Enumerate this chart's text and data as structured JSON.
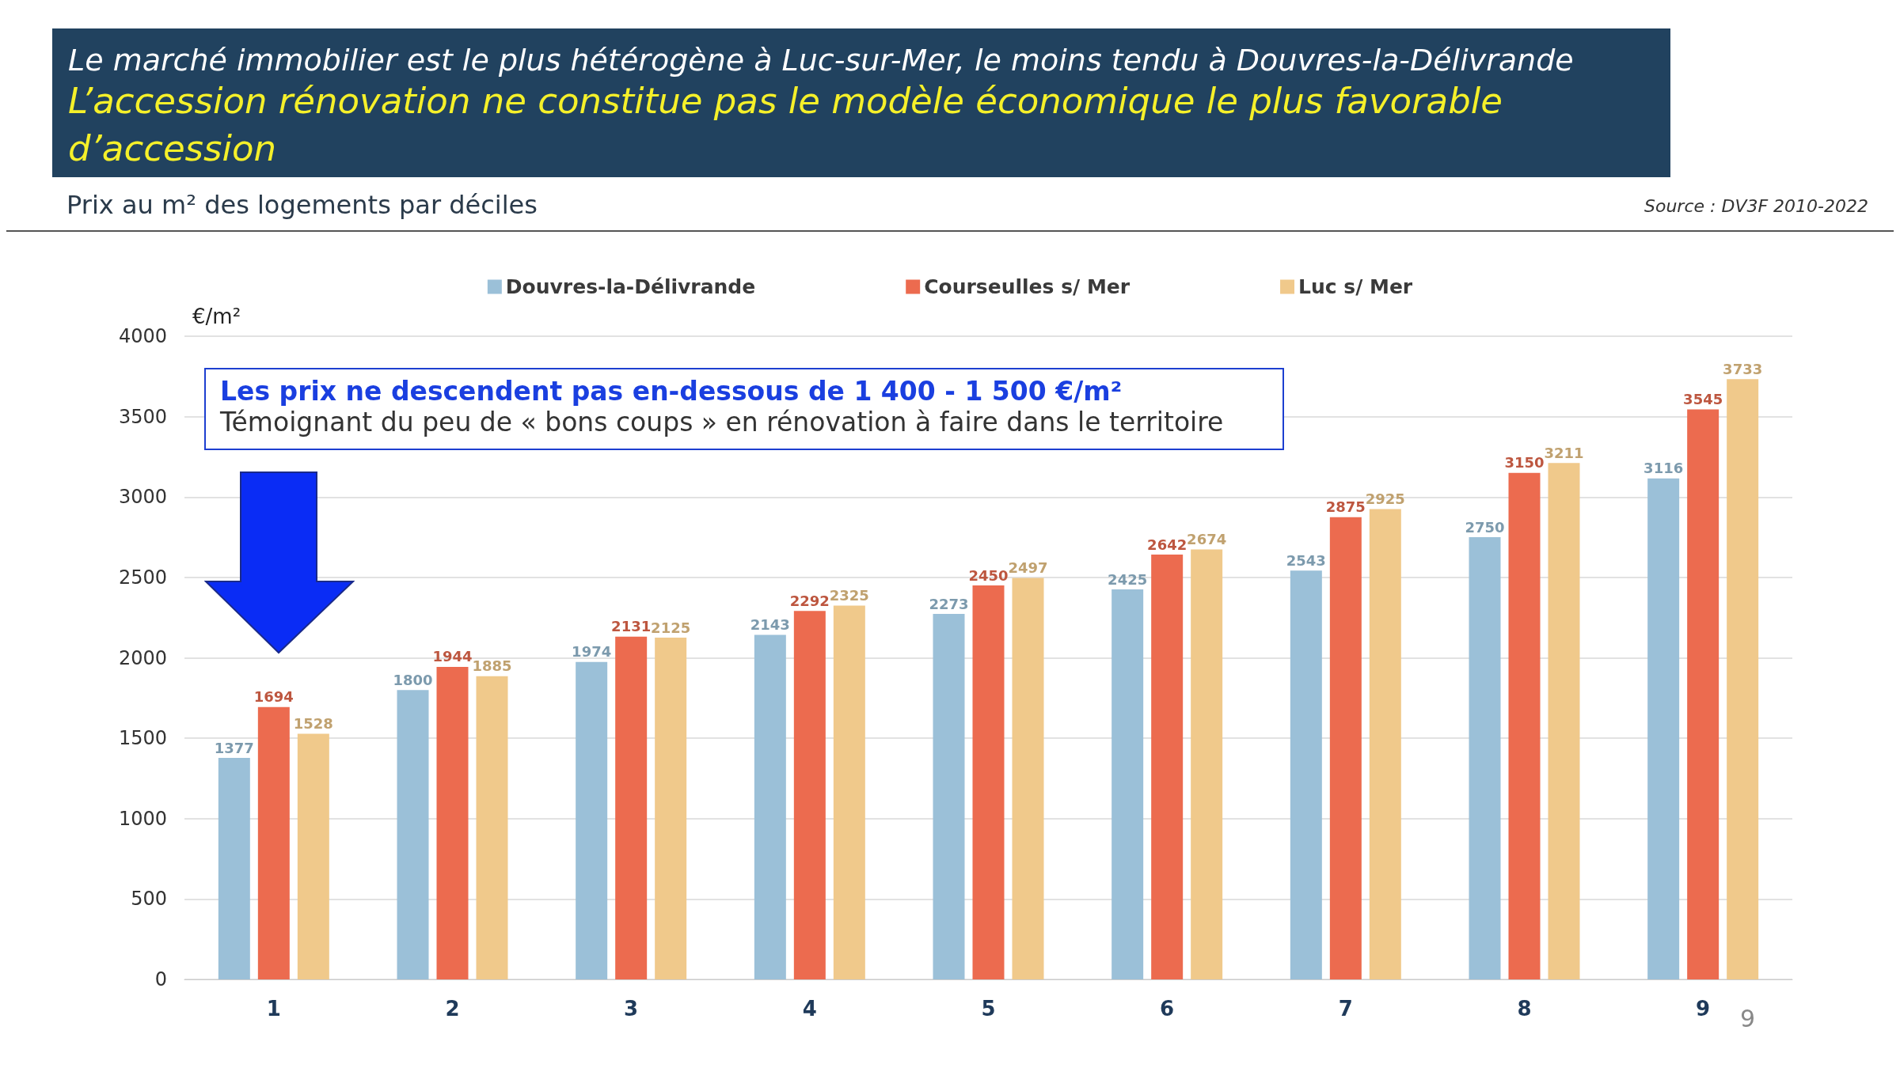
{
  "chart_data": {
    "type": "bar",
    "title": "Le marché immobilier est le plus hétérogène à Luc-sur-Mer, le moins tendu à Douvres-la-Délivrande",
    "subtitle": "L’accession rénovation ne constitue pas le modèle économique le plus favorable d’accession",
    "ylabel": "€/m²",
    "categories": [
      "1",
      "2",
      "3",
      "4",
      "5",
      "6",
      "7",
      "8",
      "9"
    ],
    "series": [
      {
        "name": "Douvres-la-Délivrande",
        "color": "#9bc0d8",
        "values": [
          1377,
          1800,
          1974,
          2143,
          2273,
          2425,
          2543,
          2750,
          3116
        ]
      },
      {
        "name": "Courseulles s/ Mer",
        "color": "#ec6b4f",
        "values": [
          1694,
          1944,
          2131,
          2292,
          2450,
          2642,
          2875,
          3150,
          3545
        ]
      },
      {
        "name": "Luc s/ Mer",
        "color": "#f0c98b",
        "values": [
          1528,
          1885,
          2125,
          2325,
          2497,
          2674,
          2925,
          3211,
          3733
        ]
      }
    ],
    "ylim": [
      0,
      4000
    ],
    "yticks": [
      0,
      500,
      1000,
      1500,
      2000,
      2500,
      3000,
      3500,
      4000
    ],
    "grid": "y",
    "legend": "top",
    "data_labels": true,
    "annotations": [
      "Prix au m² des logements par déciles",
      "Source : DV3F 2010-2022",
      "Les prix ne descendent pas en-dessous de 1 400 - 1 500 €/m²",
      "Témoignant du peu de « bons coups » en rénovation à faire dans le territoire",
      "9"
    ]
  }
}
